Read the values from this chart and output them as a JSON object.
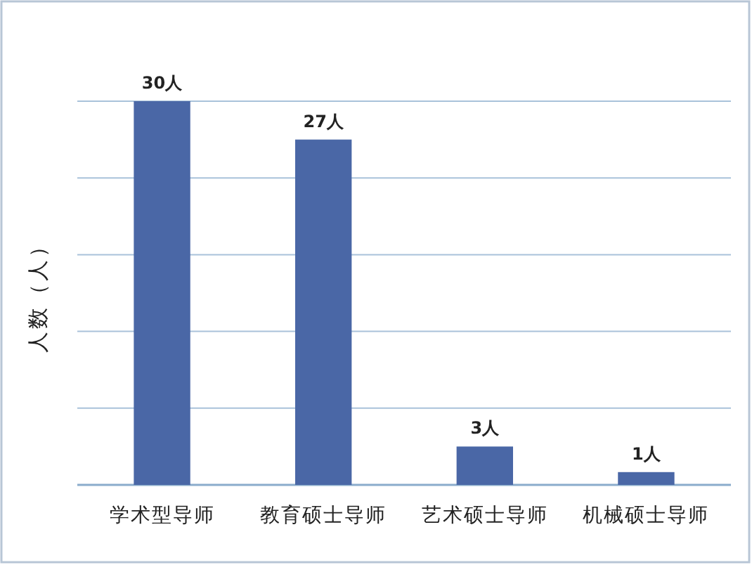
{
  "chart_data": {
    "type": "bar",
    "ylabel": "人数（人）",
    "categories": [
      "学术型导师",
      "教育硕士导师",
      "艺术硕士导师",
      "机械硕士导师"
    ],
    "values": [
      30,
      27,
      3,
      1
    ],
    "color": "#4a67a6",
    "value_labels": [
      "30人",
      "27人",
      "3人",
      "1人"
    ],
    "ylim": [
      0,
      30
    ],
    "yticks": [
      {
        "value": 0,
        "label": null
      },
      {
        "value": 6,
        "label": null
      },
      {
        "value": 12,
        "label": null
      },
      {
        "value": 18,
        "label": null
      },
      {
        "value": 24,
        "label": null
      },
      {
        "value": 30,
        "label": null
      }
    ],
    "grid": "y"
  }
}
